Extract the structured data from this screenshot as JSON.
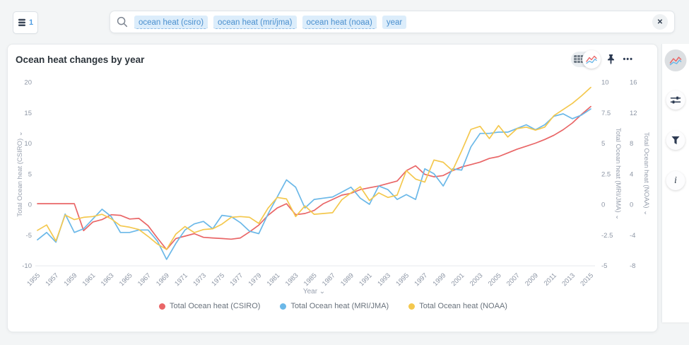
{
  "topbar": {
    "database_count": "1",
    "search": {
      "tokens": [
        {
          "label": "ocean heat (csiro)",
          "linked": true
        },
        {
          "label": "ocean heat (mri/jma)",
          "linked": true
        },
        {
          "label": "ocean heat (noaa)",
          "linked": true
        },
        {
          "label": "year",
          "linked": false
        }
      ]
    }
  },
  "card": {
    "title": "Ocean heat changes by year"
  },
  "icons": {
    "close": "✕",
    "ellipsis": "•••",
    "chevron_down": "⌄",
    "info": "i"
  },
  "colors": {
    "accent_blue": "#509ee3",
    "token_bg": "#dcedfb",
    "token_text": "#4a8fce",
    "icon_dark": "#2c3a52"
  },
  "chart_data": {
    "type": "line",
    "title": "Ocean heat changes by year",
    "xlabel": "Year",
    "grid": false,
    "legend_position": "bottom",
    "x": [
      1955,
      1956,
      1957,
      1958,
      1959,
      1960,
      1961,
      1962,
      1963,
      1964,
      1965,
      1966,
      1967,
      1968,
      1969,
      1970,
      1971,
      1972,
      1973,
      1974,
      1975,
      1976,
      1977,
      1978,
      1979,
      1980,
      1981,
      1982,
      1983,
      1984,
      1985,
      1986,
      1987,
      1988,
      1989,
      1990,
      1991,
      1992,
      1993,
      1994,
      1995,
      1996,
      1997,
      1998,
      1999,
      2000,
      2001,
      2002,
      2003,
      2004,
      2005,
      2006,
      2007,
      2008,
      2009,
      2010,
      2011,
      2012,
      2013,
      2014,
      2015
    ],
    "x_ticks": [
      1955,
      1957,
      1959,
      1961,
      1963,
      1965,
      1967,
      1969,
      1971,
      1973,
      1975,
      1977,
      1979,
      1981,
      1983,
      1985,
      1987,
      1989,
      1991,
      1993,
      1995,
      1997,
      1999,
      2001,
      2003,
      2005,
      2007,
      2009,
      2011,
      2013,
      2015
    ],
    "axes": {
      "left": {
        "label": "Total Ocean heat (CSIRO)",
        "ticks": [
          20,
          15,
          10,
          5,
          0,
          -5,
          -10
        ],
        "range": [
          -10,
          20
        ]
      },
      "right1": {
        "label": "Total Ocean heat (MRI/JMA)",
        "ticks": [
          10,
          7.5,
          5,
          2.5,
          0,
          -2.5,
          -5
        ],
        "range": [
          -5,
          10
        ]
      },
      "right2": {
        "label": "Total Ocean heat (NOAA)",
        "ticks": [
          16,
          12,
          8,
          4,
          0,
          -4,
          -8
        ],
        "range": [
          -8,
          16
        ]
      }
    },
    "series": [
      {
        "name": "Total Ocean heat (CSIRO)",
        "axis": "left",
        "color": "#e96667",
        "values": [
          0.1,
          0.1,
          0.1,
          0.1,
          0.1,
          -4.3,
          -2.9,
          -2.5,
          -1.7,
          -1.8,
          -2.4,
          -2.3,
          -3.5,
          -5.5,
          -7.4,
          -5.6,
          -5.2,
          -4.8,
          -5.4,
          -5.5,
          -5.6,
          -5.7,
          -5.5,
          -4.5,
          -3.4,
          -1.8,
          -0.6,
          0.1,
          -1.7,
          -1.5,
          -1.0,
          0.1,
          0.8,
          1.5,
          1.8,
          2.4,
          2.7,
          3.0,
          3.4,
          3.8,
          5.5,
          6.3,
          4.9,
          4.5,
          4.7,
          5.5,
          6.1,
          6.5,
          6.9,
          7.5,
          7.8,
          8.4,
          9.0,
          9.5,
          10.0,
          10.6,
          11.3,
          12.2,
          13.3,
          14.7,
          16.0
        ]
      },
      {
        "name": "Total Ocean heat (MRI/JMA)",
        "axis": "right1",
        "color": "#6bb8e8",
        "values": [
          -2.9,
          -2.3,
          -3.1,
          -0.8,
          -2.3,
          -2.0,
          -1.2,
          -0.4,
          -1.0,
          -2.3,
          -2.3,
          -2.1,
          -2.1,
          -3.0,
          -4.5,
          -3.2,
          -2.1,
          -1.6,
          -1.4,
          -2.0,
          -0.9,
          -1.0,
          -1.5,
          -2.2,
          -2.4,
          -0.8,
          0.6,
          2.0,
          1.4,
          -0.3,
          0.4,
          0.5,
          0.6,
          1.0,
          1.4,
          0.5,
          0.0,
          1.5,
          1.2,
          0.4,
          0.8,
          0.4,
          2.9,
          2.5,
          1.5,
          2.9,
          2.8,
          4.7,
          5.8,
          5.8,
          5.9,
          5.9,
          6.2,
          6.5,
          6.1,
          6.5,
          7.2,
          7.4,
          7.0,
          7.3,
          7.8
        ]
      },
      {
        "name": "Total Ocean heat (NOAA)",
        "axis": "right2",
        "color": "#f4c84e",
        "values": [
          -3.4,
          -2.7,
          -4.8,
          -1.4,
          -2.0,
          -1.7,
          -1.6,
          -1.3,
          -1.9,
          -2.8,
          -3.0,
          -3.3,
          -4.2,
          -5.2,
          -5.9,
          -3.9,
          -2.9,
          -3.7,
          -3.3,
          -3.2,
          -2.6,
          -1.7,
          -1.6,
          -1.7,
          -2.5,
          -0.5,
          0.9,
          0.7,
          -1.6,
          -0.2,
          -1.3,
          -1.2,
          -1.1,
          0.6,
          1.5,
          2.3,
          0.5,
          1.5,
          0.9,
          1.2,
          4.4,
          3.3,
          2.9,
          5.8,
          5.5,
          4.4,
          7.0,
          9.8,
          10.2,
          8.6,
          10.3,
          8.8,
          9.9,
          10.1,
          9.7,
          10.1,
          11.6,
          12.4,
          13.2,
          14.2,
          15.3
        ]
      }
    ]
  }
}
